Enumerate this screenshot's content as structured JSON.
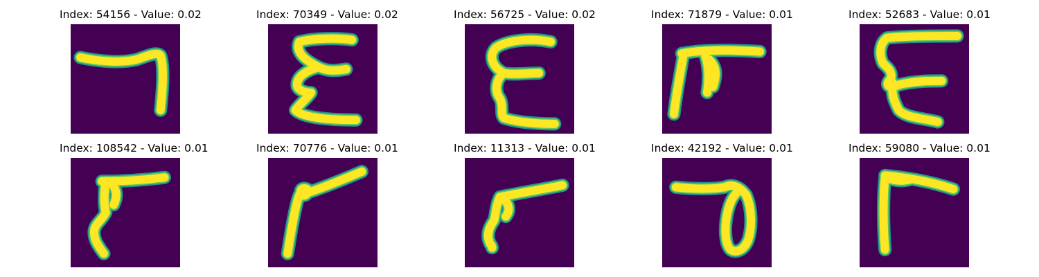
{
  "colors": {
    "background": "#440154",
    "stroke_outer": "#21918c",
    "stroke_mid": "#5ec962",
    "stroke_inner": "#fde725"
  },
  "panels": [
    {
      "index": "54156",
      "value": "0.02",
      "title": "Index: 54156 - Value: 0.02",
      "glyph": "hook-seven"
    },
    {
      "index": "70349",
      "value": "0.02",
      "title": "Index: 70349 - Value: 0.02",
      "glyph": "epsilon-tall"
    },
    {
      "index": "56725",
      "value": "0.02",
      "title": "Index: 56725 - Value: 0.02",
      "glyph": "epsilon-round"
    },
    {
      "index": "71879",
      "value": "0.01",
      "title": "Index: 71879 - Value: 0.01",
      "glyph": "pi-bar"
    },
    {
      "index": "52683",
      "value": "0.01",
      "title": "Index: 52683 - Value: 0.01",
      "glyph": "epsilon-thin"
    },
    {
      "index": "108542",
      "value": "0.01",
      "title": "Index: 108542 - Value: 0.01",
      "glyph": "gamma-thick"
    },
    {
      "index": "70776",
      "value": "0.01",
      "title": "Index: 70776 - Value: 0.01",
      "glyph": "gamma-slant"
    },
    {
      "index": "11313",
      "value": "0.01",
      "title": "Index: 11313 - Value: 0.01",
      "glyph": "gamma-low"
    },
    {
      "index": "42192",
      "value": "0.01",
      "title": "Index: 42192 - Value: 0.01",
      "glyph": "loop-d"
    },
    {
      "index": "59080",
      "value": "0.01",
      "title": "Index: 59080 - Value: 0.01",
      "glyph": "gamma-upright"
    }
  ]
}
